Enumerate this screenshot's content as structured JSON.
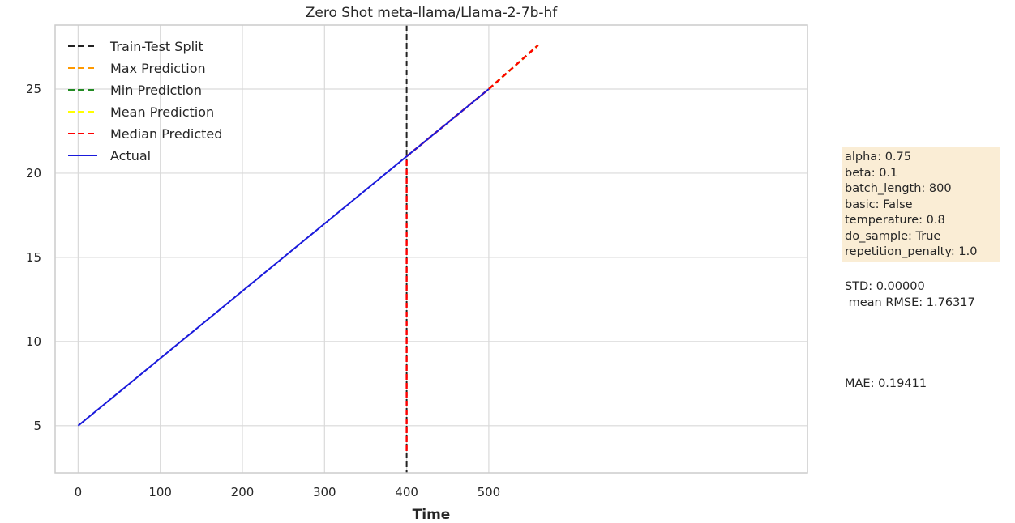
{
  "chart_data": {
    "type": "line",
    "title": "Zero Shot meta-llama/Llama-2-7b-hf",
    "xlabel": "Time",
    "ylabel": "",
    "xlim": [
      -28,
      888
    ],
    "ylim": [
      2.2,
      28.8
    ],
    "xticks": [
      0,
      100,
      200,
      300,
      400,
      500
    ],
    "yticks": [
      5,
      10,
      15,
      20,
      25
    ],
    "grid": true,
    "legend_position": "top-left",
    "split": {
      "name": "Train-Test Split",
      "x": 400,
      "color": "#222222"
    },
    "series": [
      {
        "name": "Max Prediction",
        "color": "#ff9900",
        "style": "dashed",
        "x": [
          500,
          560
        ],
        "y": [
          25.0,
          27.6
        ]
      },
      {
        "name": "Min Prediction",
        "color": "#228b22",
        "style": "dashed",
        "x": [
          500,
          560
        ],
        "y": [
          25.0,
          27.6
        ]
      },
      {
        "name": "Mean Prediction",
        "color": "#ffff00",
        "style": "dashed",
        "x": [
          500,
          560
        ],
        "y": [
          25.0,
          27.6
        ]
      },
      {
        "name": "Median Predicted",
        "color": "#ff0000",
        "style": "dashed",
        "x": [
          400,
          400,
          400,
          500,
          560
        ],
        "y": [
          3.5,
          21.0,
          21.0,
          25.0,
          27.6
        ]
      },
      {
        "name": "Actual",
        "color": "#1a1adb",
        "style": "solid",
        "x": [
          0,
          500
        ],
        "y": [
          5.0,
          25.0
        ]
      }
    ]
  },
  "side_panel": {
    "params": [
      "alpha: 0.75",
      "beta: 0.1",
      "batch_length: 800",
      "basic: False",
      "temperature: 0.8",
      "do_sample: True",
      "repetition_penalty: 1.0"
    ],
    "std": "STD: 0.00000",
    "rmse": " mean RMSE: 1.76317",
    "mae": "MAE: 0.19411"
  }
}
